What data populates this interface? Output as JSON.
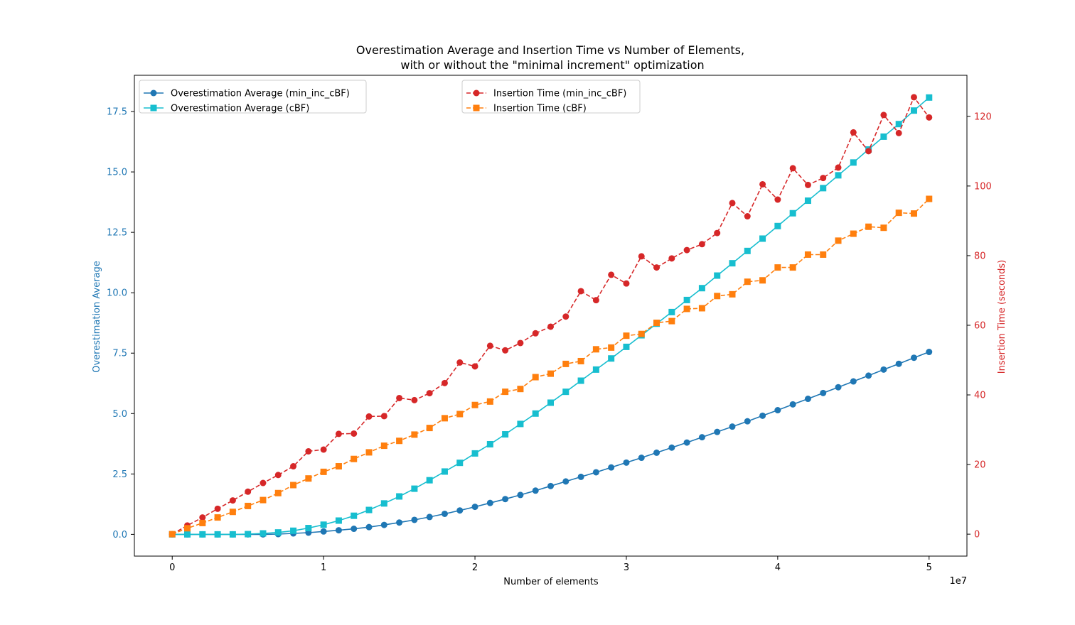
{
  "chart_data": {
    "type": "line",
    "title_line1": "Overestimation Average and Insertion Time vs Number of Elements,",
    "title_line2": "with or without the \"minimal increment\" optimization",
    "xlabel": "Number of elements",
    "x_offset_label": "1e7",
    "xlim": [
      -2500000,
      52500000
    ],
    "x_ticks": [
      0,
      10000000,
      20000000,
      30000000,
      40000000,
      50000000
    ],
    "x_tick_labels": [
      "0",
      "1",
      "2",
      "3",
      "4",
      "5"
    ],
    "y_left": {
      "label": "Overestimation Average",
      "color": "#1f77b4",
      "lim": [
        -0.9,
        19.0
      ],
      "ticks": [
        0,
        2.5,
        5,
        7.5,
        10,
        12.5,
        15,
        17.5
      ],
      "tick_labels": [
        "0.0",
        "2.5",
        "5.0",
        "7.5",
        "10.0",
        "12.5",
        "15.0",
        "17.5"
      ]
    },
    "y_right": {
      "label": "Insertion Time (seconds)",
      "color": "#d62728",
      "lim": [
        -6.3,
        131.8
      ],
      "ticks": [
        0,
        20,
        40,
        60,
        80,
        100,
        120
      ],
      "tick_labels": [
        "0",
        "20",
        "40",
        "60",
        "80",
        "100",
        "120"
      ]
    },
    "x": [
      0,
      1000000,
      2000000,
      3000000,
      4000000,
      5000000,
      6000000,
      7000000,
      8000000,
      9000000,
      10000000,
      11000000,
      12000000,
      13000000,
      14000000,
      15000000,
      16000000,
      17000000,
      18000000,
      19000000,
      20000000,
      21000000,
      22000000,
      23000000,
      24000000,
      25000000,
      26000000,
      27000000,
      28000000,
      29000000,
      30000000,
      31000000,
      32000000,
      33000000,
      34000000,
      35000000,
      36000000,
      37000000,
      38000000,
      39000000,
      40000000,
      41000000,
      42000000,
      43000000,
      44000000,
      45000000,
      46000000,
      47000000,
      48000000,
      49000000,
      50000000
    ],
    "series": [
      {
        "name": "Overestimation Average (min_inc_cBF)",
        "axis": "left",
        "color": "#1f77b4",
        "linestyle": "solid",
        "marker": "circle",
        "values": [
          0.0,
          0.0,
          0.0,
          0.0,
          0.0,
          0.0,
          0.0,
          0.01,
          0.04,
          0.07,
          0.12,
          0.17,
          0.23,
          0.3,
          0.39,
          0.49,
          0.6,
          0.72,
          0.85,
          0.99,
          1.14,
          1.3,
          1.46,
          1.63,
          1.81,
          2.0,
          2.19,
          2.38,
          2.57,
          2.77,
          2.97,
          3.17,
          3.38,
          3.59,
          3.8,
          4.02,
          4.24,
          4.46,
          4.68,
          4.91,
          5.14,
          5.38,
          5.61,
          5.85,
          6.09,
          6.33,
          6.57,
          6.82,
          7.06,
          7.31,
          7.55
        ]
      },
      {
        "name": "Overestimation Average (cBF)",
        "axis": "left",
        "color": "#17becf",
        "linestyle": "solid",
        "marker": "square",
        "values": [
          0.0,
          0.0,
          0.0,
          0.0,
          0.0,
          0.01,
          0.04,
          0.08,
          0.15,
          0.26,
          0.4,
          0.57,
          0.77,
          1.01,
          1.28,
          1.57,
          1.89,
          2.24,
          2.6,
          2.96,
          3.35,
          3.73,
          4.14,
          4.57,
          5.0,
          5.45,
          5.9,
          6.36,
          6.82,
          7.28,
          7.76,
          8.24,
          8.72,
          9.2,
          9.7,
          10.19,
          10.71,
          11.22,
          11.73,
          12.24,
          12.76,
          13.29,
          13.81,
          14.33,
          14.86,
          15.39,
          15.93,
          16.46,
          16.98,
          17.54,
          18.08
        ]
      },
      {
        "name": "Insertion Time (min_inc_cBF)",
        "axis": "right",
        "color": "#d62728",
        "linestyle": "dashed",
        "marker": "circle",
        "values": [
          0.0,
          2.5,
          4.8,
          7.3,
          9.7,
          12.2,
          14.7,
          17.0,
          19.5,
          23.8,
          24.3,
          28.8,
          28.9,
          33.8,
          33.9,
          39.1,
          38.5,
          40.5,
          43.4,
          49.3,
          48.2,
          54.1,
          52.8,
          54.9,
          57.7,
          59.6,
          62.5,
          69.8,
          67.2,
          74.5,
          72.0,
          79.8,
          76.6,
          79.2,
          81.6,
          83.3,
          86.5,
          95.1,
          91.3,
          100.5,
          96.1,
          105.1,
          100.3,
          102.3,
          105.3,
          115.4,
          110.0,
          120.4,
          115.2,
          125.5,
          119.7
        ]
      },
      {
        "name": "Insertion Time (cBF)",
        "axis": "right",
        "color": "#ff7f0e",
        "linestyle": "dashed",
        "marker": "square",
        "values": [
          0.0,
          1.7,
          3.2,
          4.8,
          6.4,
          8.1,
          9.8,
          11.8,
          14.1,
          16.0,
          17.9,
          19.5,
          21.6,
          23.5,
          25.4,
          26.8,
          28.6,
          30.5,
          33.3,
          34.5,
          37.1,
          38.1,
          40.9,
          41.7,
          45.1,
          46.1,
          48.9,
          49.7,
          53.1,
          53.6,
          57.0,
          57.5,
          60.7,
          61.2,
          64.7,
          64.9,
          68.4,
          68.9,
          72.5,
          72.9,
          76.6,
          76.6,
          80.3,
          80.3,
          84.3,
          86.3,
          88.3,
          88.0,
          92.3,
          92.1,
          96.3
        ]
      }
    ],
    "legend_left_position": "top-left",
    "legend_right_position": "upper-center",
    "grid": false
  }
}
